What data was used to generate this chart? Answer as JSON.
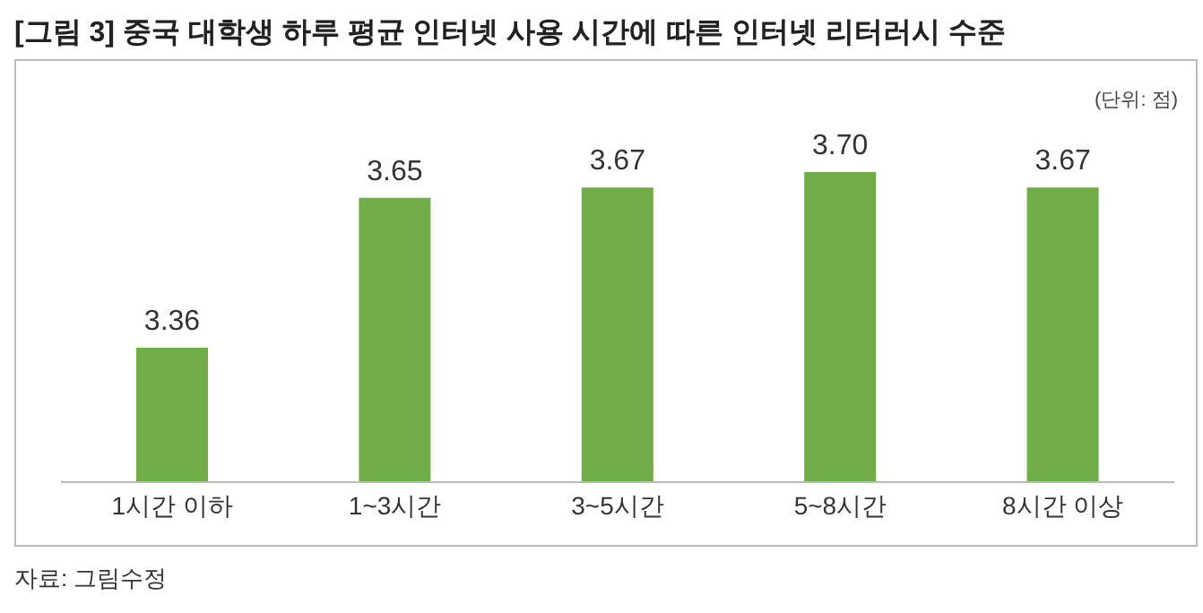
{
  "chart_data": {
    "type": "bar",
    "title": "[그림 3] 중국 대학생 하루 평균 인터넷 사용 시간에 따른 인터넷 리터러시 수준",
    "categories": [
      "1시간 이하",
      "1~3시간",
      "3~5시간",
      "5~8시간",
      "8시간 이상"
    ],
    "values": [
      3.36,
      3.65,
      3.67,
      3.7,
      3.67
    ],
    "color": "#70ad47",
    "ylim": [
      3.1,
      3.7
    ],
    "value_labels": [
      "3.36",
      "3.65",
      "3.67",
      "3.70",
      "3.67"
    ],
    "tick_labels": "x",
    "annotations": [
      "(단위: 점)",
      "자료: 그림수정"
    ]
  }
}
